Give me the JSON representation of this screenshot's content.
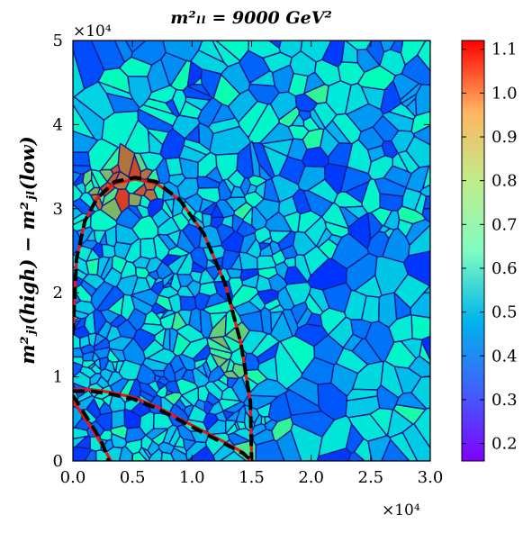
{
  "chart_data": {
    "type": "heatmap",
    "title": "m²ₗₗ = 9000 GeV²",
    "ylabel": "m²ⱼₗ(high) − m²ⱼₗ(low)",
    "xlabel": "",
    "x_multiplier": "×10⁴",
    "y_multiplier": "×10⁴",
    "xlim": [
      0,
      30000
    ],
    "ylim": [
      0,
      50000
    ],
    "xticks": [
      0,
      5000,
      10000,
      15000,
      20000,
      25000,
      30000
    ],
    "xtick_labels": [
      "0.0",
      "0.5",
      "1.0",
      "1.5",
      "2.0",
      "2.5",
      "3.0"
    ],
    "yticks": [
      0,
      10000,
      20000,
      30000,
      40000,
      50000
    ],
    "ytick_labels": [
      "0",
      "1",
      "2",
      "3",
      "4",
      "5"
    ],
    "colorbar": {
      "colormap": "rainbow",
      "range": [
        0.16,
        1.12
      ],
      "ticks": [
        0.2,
        0.3,
        0.4,
        0.5,
        0.6,
        0.7,
        0.8,
        0.9,
        1.0,
        1.1
      ],
      "tick_labels": [
        "0.2",
        "0.3",
        "0.4",
        "0.5",
        "0.6",
        "0.7",
        "0.8",
        "0.9",
        "1.0",
        "1.1"
      ]
    },
    "description_of_cells": "Voronoi tessellation cells colored by value, denser near origin",
    "contours": [
      {
        "name": "",
        "color": "#e8161b",
        "style": "solid",
        "points": [
          [
            0,
            15000
          ],
          [
            300,
            24000
          ],
          [
            1000,
            28500
          ],
          [
            2000,
            31200
          ],
          [
            3500,
            33000
          ],
          [
            5200,
            33500
          ],
          [
            7000,
            33000
          ],
          [
            9000,
            31000
          ],
          [
            11000,
            27000
          ],
          [
            12800,
            21000
          ],
          [
            14100,
            14000
          ],
          [
            14900,
            7000
          ],
          [
            15000,
            0
          ]
        ]
      },
      {
        "name": "",
        "color": "#000000",
        "style": "dashed",
        "points": [
          [
            0,
            15000
          ],
          [
            300,
            24000
          ],
          [
            1000,
            28500
          ],
          [
            2000,
            31200
          ],
          [
            3500,
            33200
          ],
          [
            5200,
            33700
          ],
          [
            7000,
            33200
          ],
          [
            9000,
            31000
          ],
          [
            11000,
            27000
          ],
          [
            12800,
            21000
          ],
          [
            14100,
            14000
          ],
          [
            14900,
            7000
          ],
          [
            15000,
            0
          ]
        ]
      },
      {
        "name": "",
        "color": "#e8161b",
        "style": "solid",
        "points": [
          [
            0,
            8500
          ],
          [
            1500,
            8500
          ],
          [
            3000,
            8200
          ],
          [
            5000,
            7600
          ],
          [
            7000,
            6500
          ],
          [
            9000,
            5000
          ],
          [
            11000,
            3500
          ],
          [
            12800,
            2200
          ],
          [
            14300,
            1000
          ],
          [
            15000,
            0
          ]
        ]
      },
      {
        "name": "",
        "color": "#000000",
        "style": "dashed",
        "points": [
          [
            0,
            8300
          ],
          [
            1500,
            8300
          ],
          [
            3000,
            8000
          ],
          [
            5000,
            7400
          ],
          [
            7000,
            6300
          ],
          [
            9000,
            4800
          ],
          [
            11000,
            3300
          ],
          [
            12800,
            2000
          ],
          [
            14300,
            900
          ],
          [
            15000,
            0
          ]
        ]
      },
      {
        "name": "",
        "color": "#e8161b",
        "style": "solid",
        "points": [
          [
            0,
            7200
          ],
          [
            800,
            5500
          ],
          [
            1600,
            3800
          ],
          [
            2400,
            2000
          ],
          [
            3200,
            0
          ]
        ]
      },
      {
        "name": "",
        "color": "#000000",
        "style": "dashed",
        "points": [
          [
            0,
            7800
          ],
          [
            800,
            6000
          ],
          [
            1700,
            4000
          ],
          [
            2500,
            2000
          ],
          [
            3000,
            0
          ]
        ]
      }
    ]
  }
}
